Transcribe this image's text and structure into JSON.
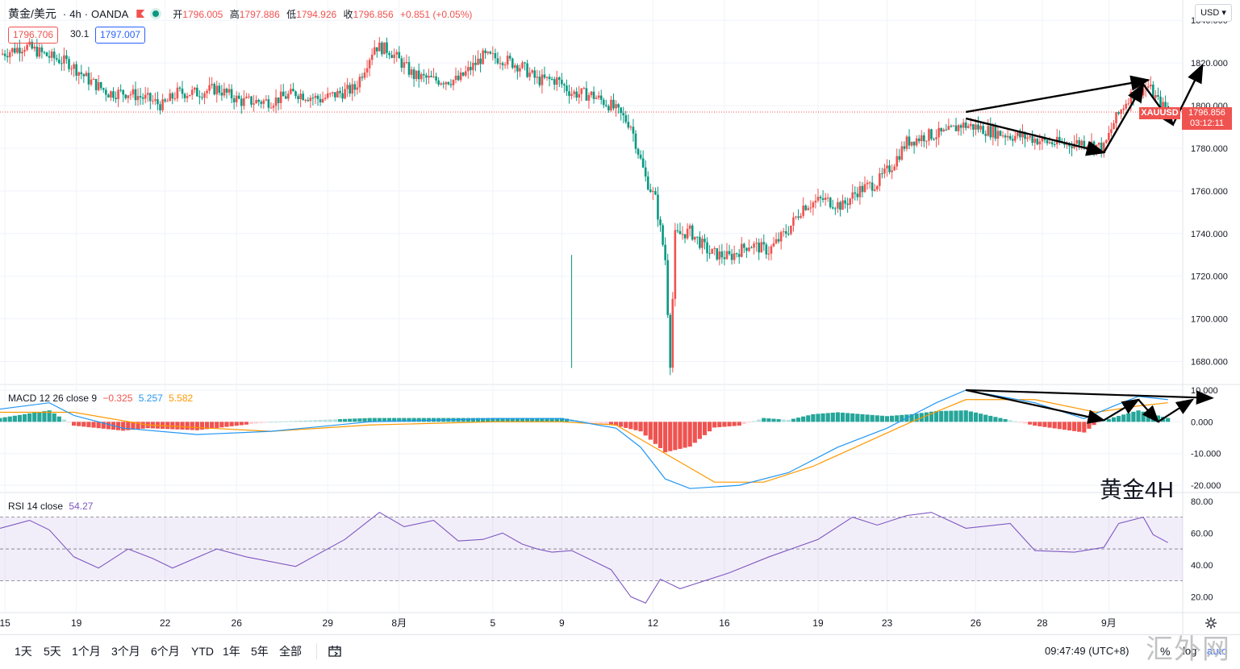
{
  "legend": {
    "symbol": "黄金/美元",
    "interval": "4h",
    "broker": "OANDA",
    "ohlc": [
      {
        "k": "开",
        "v": "1796.005"
      },
      {
        "k": "高",
        "v": "1797.886"
      },
      {
        "k": "低",
        "v": "1794.926"
      },
      {
        "k": "收",
        "v": "1796.856"
      }
    ],
    "change": "+0.851 (+0.05%)",
    "bid": "1796.706",
    "spread": "30.1",
    "ask": "1797.007"
  },
  "currency": "USD",
  "price_tag": {
    "symbol": "XAUUSD",
    "price": "1796.856",
    "countdown": "03:12:11"
  },
  "macd_legend": {
    "name": "MACD 12 26 close 9",
    "hist": "−0.325",
    "macd": "5.257",
    "signal": "5.582"
  },
  "rsi_legend": {
    "name": "RSI 14 close",
    "value": "54.27"
  },
  "annotation": "黄金4H",
  "toolbar": {
    "ranges": [
      "1天",
      "5天",
      "1个月",
      "3个月",
      "6个月",
      "YTD",
      "1年",
      "5年",
      "全部"
    ],
    "clock": "09:47:49 (UTC+8)",
    "percent_label": "%",
    "log_label": "log",
    "auto_label": "auto"
  },
  "watermark": "汇外网",
  "colors": {
    "up": "#ef5350",
    "down": "#089981",
    "macd": "#2196f3",
    "signal": "#ff9800",
    "rsi": "#7e57c2"
  },
  "chart_data": [
    {
      "type": "candlestick",
      "title": "黄金/美元 · 4h · OANDA",
      "ylim": [
        1670,
        1845
      ],
      "y_ticks": [
        "1840.000",
        "1820.000",
        "1800.000",
        "1780.000",
        "1760.000",
        "1740.000",
        "1720.000",
        "1700.000",
        "1680.000"
      ],
      "x_ticks": [
        "15",
        "19",
        "22",
        "26",
        "29",
        "8月",
        "5",
        "9",
        "12",
        "16",
        "19",
        "23",
        "26",
        "28",
        "9月"
      ],
      "close_path": [
        [
          0,
          1824
        ],
        [
          10,
          1828
        ],
        [
          20,
          1823
        ],
        [
          28,
          1820
        ],
        [
          36,
          1812
        ],
        [
          44,
          1806
        ],
        [
          52,
          1806
        ],
        [
          60,
          1803
        ],
        [
          66,
          1800
        ],
        [
          72,
          1806
        ],
        [
          80,
          1806
        ],
        [
          88,
          1808
        ],
        [
          98,
          1802
        ],
        [
          110,
          1802
        ],
        [
          120,
          1806
        ],
        [
          130,
          1803
        ],
        [
          144,
          1808
        ],
        [
          152,
          1828
        ],
        [
          158,
          1826
        ],
        [
          168,
          1814
        ],
        [
          176,
          1812
        ],
        [
          186,
          1812
        ],
        [
          196,
          1823
        ],
        [
          204,
          1822
        ],
        [
          212,
          1818
        ],
        [
          218,
          1812
        ],
        [
          226,
          1812
        ],
        [
          232,
          1806
        ],
        [
          240,
          1805
        ],
        [
          248,
          1800
        ],
        [
          256,
          1791
        ],
        [
          262,
          1766
        ],
        [
          266,
          1756
        ],
        [
          270,
          1728
        ],
        [
          272,
          1680
        ],
        [
          274,
          1739
        ],
        [
          280,
          1741
        ],
        [
          288,
          1731
        ],
        [
          296,
          1729
        ],
        [
          304,
          1735
        ],
        [
          312,
          1732
        ],
        [
          320,
          1742
        ],
        [
          326,
          1753
        ],
        [
          334,
          1756
        ],
        [
          342,
          1753
        ],
        [
          348,
          1760
        ],
        [
          356,
          1764
        ],
        [
          362,
          1772
        ],
        [
          368,
          1783
        ],
        [
          376,
          1786
        ],
        [
          384,
          1787
        ],
        [
          390,
          1791
        ],
        [
          396,
          1790
        ],
        [
          402,
          1788
        ],
        [
          410,
          1786
        ],
        [
          418,
          1785
        ],
        [
          424,
          1783
        ],
        [
          432,
          1782
        ],
        [
          440,
          1783
        ],
        [
          448,
          1780
        ],
        [
          452,
          1792
        ],
        [
          458,
          1804
        ],
        [
          462,
          1807
        ],
        [
          466,
          1809
        ],
        [
          470,
          1802
        ],
        [
          474,
          1797
        ]
      ],
      "drawings": [
        {
          "type": "trendline",
          "from": [
            392,
            1797
          ],
          "to": [
            466,
            1812
          ],
          "arrow": true
        },
        {
          "type": "trendline",
          "from": [
            392,
            1794
          ],
          "to": [
            448,
            1778
          ],
          "arrow": true
        },
        {
          "type": "trendline",
          "from": [
            448,
            1778
          ],
          "to": [
            464,
            1810
          ],
          "arrow": true
        },
        {
          "type": "trendline",
          "from": [
            464,
            1810
          ],
          "to": [
            476,
            1791
          ],
          "arrow": true
        },
        {
          "type": "trendline",
          "from": [
            476,
            1791
          ],
          "to": [
            488,
            1819
          ],
          "arrow": true
        }
      ]
    },
    {
      "type": "line",
      "title": "MACD 12 26 close 9",
      "ylim": [
        -22,
        11
      ],
      "y_ticks": [
        "10.000",
        "0.000",
        "-10.000",
        "-20.000"
      ],
      "macd_path": [
        [
          0,
          4
        ],
        [
          20,
          6
        ],
        [
          30,
          2
        ],
        [
          50,
          -2
        ],
        [
          80,
          -4
        ],
        [
          110,
          -3
        ],
        [
          150,
          0
        ],
        [
          200,
          1
        ],
        [
          228,
          1
        ],
        [
          250,
          -2
        ],
        [
          260,
          -8
        ],
        [
          270,
          -18
        ],
        [
          280,
          -21
        ],
        [
          300,
          -20
        ],
        [
          320,
          -16
        ],
        [
          340,
          -8
        ],
        [
          360,
          -2
        ],
        [
          380,
          6
        ],
        [
          392,
          10
        ],
        [
          420,
          6
        ],
        [
          440,
          1
        ],
        [
          452,
          5
        ],
        [
          462,
          8
        ],
        [
          474,
          7
        ]
      ],
      "signal_path": [
        [
          0,
          3
        ],
        [
          30,
          3
        ],
        [
          60,
          -1
        ],
        [
          110,
          -3
        ],
        [
          150,
          -1
        ],
        [
          200,
          0
        ],
        [
          228,
          0
        ],
        [
          250,
          -1
        ],
        [
          270,
          -10
        ],
        [
          290,
          -19
        ],
        [
          310,
          -19
        ],
        [
          330,
          -14
        ],
        [
          350,
          -7
        ],
        [
          370,
          0
        ],
        [
          392,
          7
        ],
        [
          420,
          7
        ],
        [
          445,
          3
        ],
        [
          462,
          5
        ],
        [
          474,
          6
        ]
      ],
      "last_values": {
        "histogram": -0.325,
        "macd": 5.257,
        "signal": 5.582
      }
    },
    {
      "type": "line",
      "title": "RSI 14 close",
      "ylim": [
        10,
        85
      ],
      "y_ticks": [
        "80.00",
        "60.00",
        "40.00",
        "20.00"
      ],
      "bands": [
        70,
        50,
        30
      ],
      "rsi_path": [
        [
          0,
          63
        ],
        [
          12,
          68
        ],
        [
          20,
          62
        ],
        [
          30,
          45
        ],
        [
          40,
          38
        ],
        [
          52,
          50
        ],
        [
          62,
          44
        ],
        [
          70,
          38
        ],
        [
          88,
          50
        ],
        [
          100,
          45
        ],
        [
          120,
          39
        ],
        [
          140,
          56
        ],
        [
          154,
          73
        ],
        [
          164,
          64
        ],
        [
          176,
          68
        ],
        [
          186,
          55
        ],
        [
          196,
          56
        ],
        [
          204,
          60
        ],
        [
          212,
          53
        ],
        [
          218,
          50
        ],
        [
          224,
          48
        ],
        [
          232,
          49
        ],
        [
          248,
          37
        ],
        [
          256,
          20
        ],
        [
          262,
          16
        ],
        [
          268,
          31
        ],
        [
          276,
          25
        ],
        [
          296,
          35
        ],
        [
          312,
          45
        ],
        [
          332,
          56
        ],
        [
          346,
          70
        ],
        [
          356,
          65
        ],
        [
          368,
          71
        ],
        [
          378,
          73
        ],
        [
          392,
          63
        ],
        [
          410,
          66
        ],
        [
          420,
          49
        ],
        [
          436,
          48
        ],
        [
          448,
          51
        ],
        [
          454,
          66
        ],
        [
          464,
          70
        ],
        [
          468,
          59
        ],
        [
          474,
          54
        ]
      ],
      "last_value": 54.27
    }
  ]
}
